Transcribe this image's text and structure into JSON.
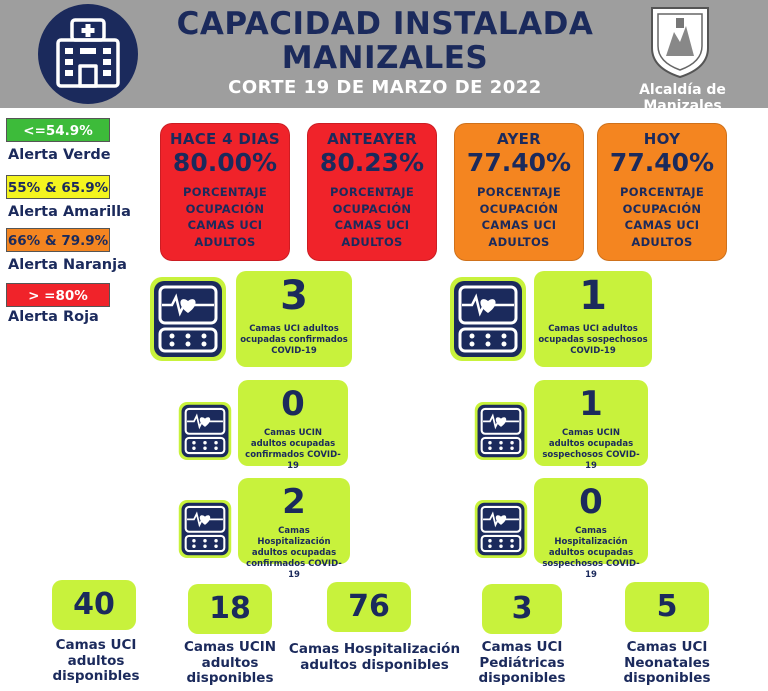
{
  "header": {
    "title_line1": "CAPACIDAD INSTALADA",
    "title_line2": "MANIZALES",
    "subtitle": "CORTE 19 DE MARZO DE 2022",
    "logo_text": "Alcaldía de Manizales",
    "hospital_icon": "hospital-building-icon",
    "shield_icon": "manizales-shield-icon"
  },
  "legend": [
    {
      "range": "<=54.9%",
      "label": "Alerta Verde",
      "color": "#3dbb3a"
    },
    {
      "range": "55% & 65.9%",
      "label": "Alerta Amarilla",
      "color": "#f4f41f"
    },
    {
      "range": "66% & 79.9%",
      "label": "Alerta Naranja",
      "color": "#f48520"
    },
    {
      "range": "> =80%",
      "label": "Alerta Roja",
      "color": "#f0232a"
    }
  ],
  "occupancy": [
    {
      "label": "HACE 4 DIAS",
      "value": "80.00%",
      "line1": "PORCENTAJE",
      "line2": "OCUPACIÓN",
      "line3": "CAMAS UCI",
      "line4": "ADULTOS",
      "color": "#f0232a"
    },
    {
      "label": "ANTEAYER",
      "value": "80.23%",
      "line1": "PORCENTAJE",
      "line2": "OCUPACIÓN",
      "line3": "CAMAS UCI",
      "line4": "ADULTOS",
      "color": "#f0232a"
    },
    {
      "label": "AYER",
      "value": "77.40%",
      "line1": "PORCENTAJE",
      "line2": "OCUPACIÓN",
      "line3": "CAMAS UCI",
      "line4": "ADULTOS",
      "color": "#f48520"
    },
    {
      "label": "HOY",
      "value": "77.40%",
      "line1": "PORCENTAJE",
      "line2": "OCUPACIÓN",
      "line3": "CAMAS UCI",
      "line4": "ADULTOS",
      "color": "#f48520"
    }
  ],
  "covid": {
    "uci_conf": {
      "value": "3",
      "line1": "Camas UCI adultos",
      "line2": "ocupadas confirmados",
      "line3": "COVID-19"
    },
    "uci_sosp": {
      "value": "1",
      "line1": "Camas UCI adultos",
      "line2": "ocupadas sospechosos",
      "line3": "COVID-19"
    },
    "ucin_conf": {
      "value": "0",
      "line1": "Camas  UCIN",
      "line2": "adultos ocupadas",
      "line3": "confirmados COVID-19"
    },
    "ucin_sosp": {
      "value": "1",
      "line1": "Camas  UCIN",
      "line2": "adultos ocupadas",
      "line3": "sospechosos COVID-19"
    },
    "hosp_conf": {
      "value": "2",
      "line1": "Camas  Hospitalización",
      "line2": "adultos ocupadas",
      "line3": "confirmados COVID-19"
    },
    "hosp_sosp": {
      "value": "0",
      "line1": "Camas  Hospitalización",
      "line2": "adultos ocupadas",
      "line3": "sospechosos COVID-19"
    },
    "monitor_icon": "heart-monitor-icon"
  },
  "available": [
    {
      "value": "40",
      "line1": "Camas UCI",
      "line2": "adultos",
      "line3": "disponibles"
    },
    {
      "value": "18",
      "line1": "Camas UCIN",
      "line2": "adultos",
      "line3": "disponibles"
    },
    {
      "value": "76",
      "line1": "Camas  Hospitalización",
      "line2": "adultos disponibles",
      "line3": ""
    },
    {
      "value": "3",
      "line1": "Camas  UCI",
      "line2": "Pediátricas",
      "line3": "disponibles"
    },
    {
      "value": "5",
      "line1": "Camas  UCI",
      "line2": "Neonatales",
      "line3": "disponibles"
    }
  ]
}
